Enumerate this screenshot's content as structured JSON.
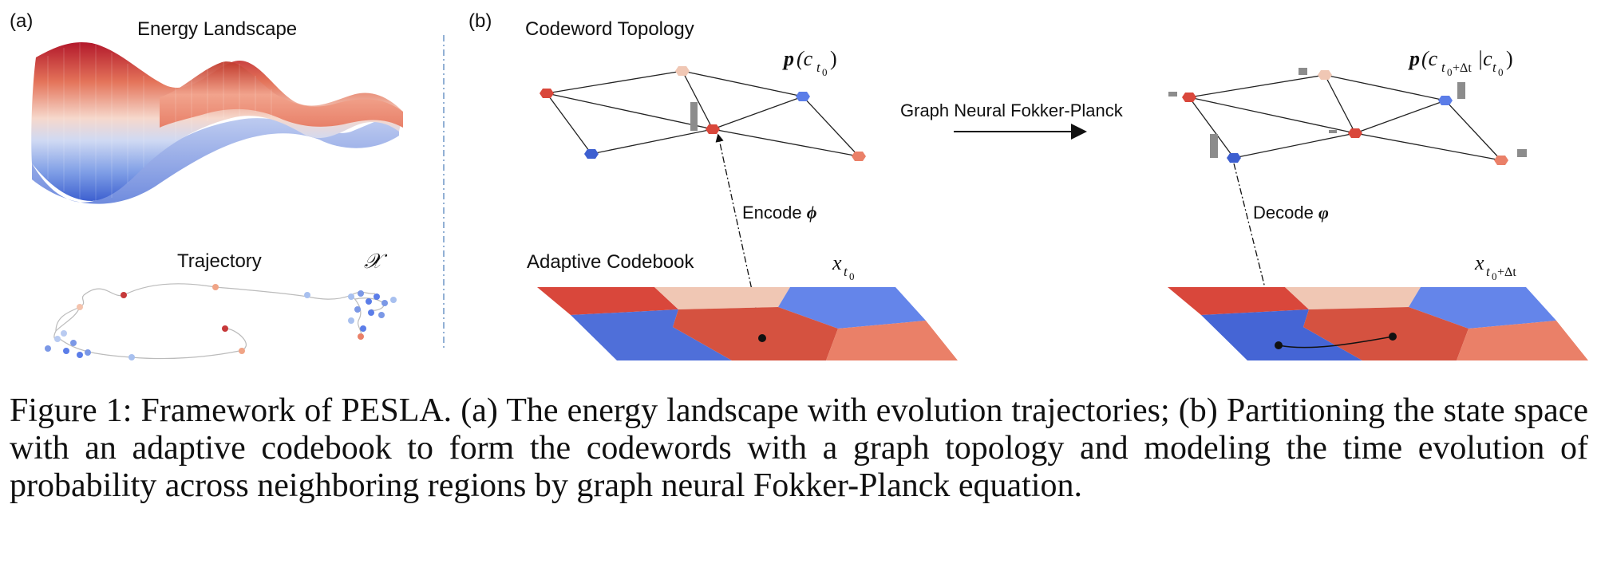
{
  "panel_a": {
    "label": "(a)",
    "energy_title": "Energy Landscape",
    "trajectory_title": "Trajectory",
    "state_symbol": "𝒳"
  },
  "panel_b": {
    "label": "(b)",
    "topology_title": "Codeword Topology",
    "prob_left": "p(c",
    "prob_left_sub": "t",
    "prob_left_subsub": "0",
    "prob_left_close": ")",
    "arrow_label": "Graph Neural Fokker-Planck",
    "prob_right_pre": "p(c",
    "prob_right_sub": "t",
    "prob_right_subsub": "0",
    "prob_right_subtail": "+Δt",
    "prob_right_mid": "|c",
    "prob_right_sub2": "t",
    "prob_right_subsub2": "0",
    "prob_right_close": ")",
    "encode_label": "Encode ",
    "encode_symbol": "ϕ",
    "decode_label": "Decode ",
    "decode_symbol": "φ",
    "codebook_title": "Adaptive Codebook",
    "x_left": "x",
    "x_left_sub": "t",
    "x_left_subsub": "0",
    "x_right": "x",
    "x_right_sub": "t",
    "x_right_subsub": "0",
    "x_right_subtail": "+Δt"
  },
  "colors": {
    "red": "#d9473b",
    "peach": "#f0c7b4",
    "blue": "#5b7de8",
    "salmon": "#ea8068",
    "edge": "#222222",
    "bar": "#8c8c8c"
  },
  "caption": "Figure 1: Framework of PESLA. (a) The energy landscape with evolution trajectories; (b) Partitioning the state space with an adaptive codebook to form the codewords with a graph topology and modeling the time evolution of probability across neighboring regions by graph neural Fokker-Planck equation."
}
